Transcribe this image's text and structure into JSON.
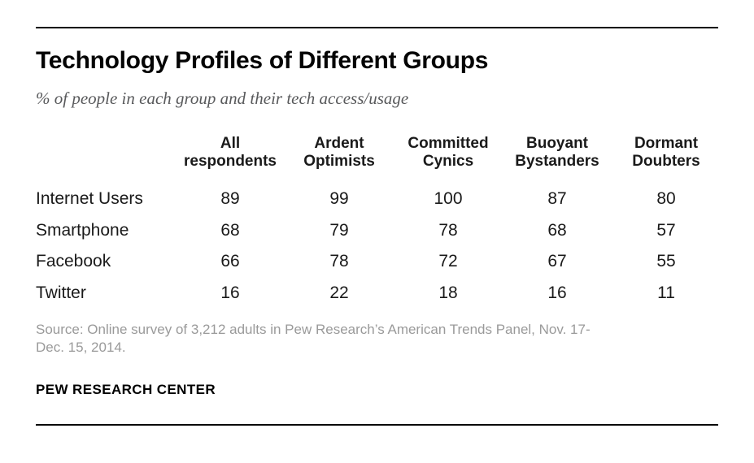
{
  "header": {
    "title": "Technology Profiles of Different Groups",
    "subtitle": "% of people in each group and their tech access/usage"
  },
  "table": {
    "header_display": [
      {
        "line1": "All",
        "line2": "respondents"
      },
      {
        "line1": "Ardent",
        "line2": "Optimists"
      },
      {
        "line1": "Committed",
        "line2": "Cynics"
      },
      {
        "line1": "Buoyant",
        "line2": "Bystanders"
      },
      {
        "line1": "Dormant",
        "line2": "Doubters"
      }
    ]
  },
  "chart_data": {
    "type": "table",
    "title": "Technology Profiles of Different Groups",
    "subtitle": "% of people in each group and their tech access/usage",
    "columns": [
      "All respondents",
      "Ardent Optimists",
      "Committed Cynics",
      "Buoyant Bystanders",
      "Dormant Doubters"
    ],
    "rows": [
      {
        "label": "Internet Users",
        "values": [
          89,
          99,
          100,
          87,
          80
        ]
      },
      {
        "label": "Smartphone",
        "values": [
          68,
          79,
          78,
          68,
          57
        ]
      },
      {
        "label": "Facebook",
        "values": [
          66,
          78,
          72,
          67,
          55
        ]
      },
      {
        "label": "Twitter",
        "values": [
          16,
          22,
          18,
          16,
          11
        ]
      }
    ]
  },
  "footer": {
    "source_line1": "Source: Online survey of 3,212 adults in Pew Research’s American Trends Panel, Nov. 17-",
    "source_line2": "Dec. 15, 2014.",
    "branding": "PEW RESEARCH CENTER"
  },
  "colors": {
    "background": "#ffffff",
    "title_text": "#040404",
    "subtitle_text": "#58595b",
    "table_text": "#1a1a1a",
    "source_text": "#9a9a9a",
    "rule": "#000000"
  }
}
